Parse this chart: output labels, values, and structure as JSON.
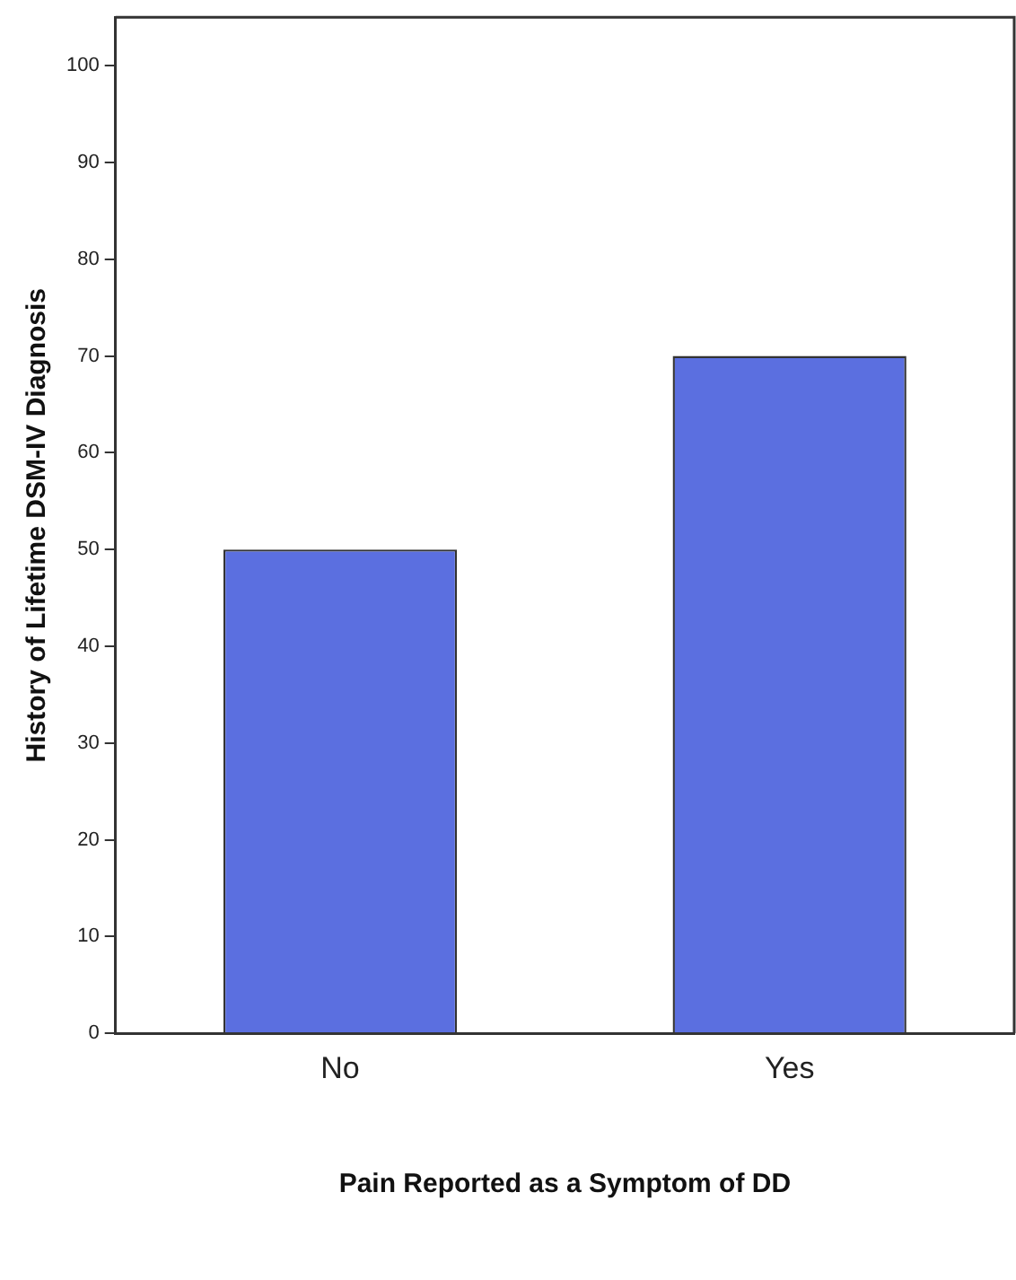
{
  "chart_data": {
    "type": "bar",
    "xlabel": "Pain Reported as a Symptom of DD",
    "ylabel": "History of Lifetime DSM-IV Diagnosis",
    "categories": [
      "No",
      "Yes"
    ],
    "values": [
      50,
      70
    ],
    "color": "#5b6fe0",
    "ylim": [
      0,
      105
    ],
    "yticks": [
      0,
      10,
      20,
      30,
      40,
      50,
      60,
      70,
      80,
      90,
      100
    ],
    "grid": false,
    "legend": false
  }
}
